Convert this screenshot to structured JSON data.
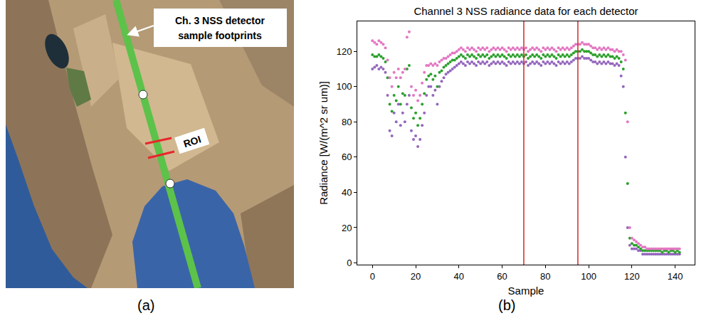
{
  "map": {
    "label": "(a)",
    "callout": "Ch. 3 NSS detector sample footprints",
    "roi": "ROI"
  },
  "chart_data": {
    "type": "scatter",
    "label": "(b)",
    "title": "Channel 3 NSS radiance data for each detector",
    "x_label": "Sample",
    "y_label": "Radiance [W/(m^2 sr um)]",
    "marker": "dot",
    "grid": false,
    "xlim": [
      -7,
      149
    ],
    "ylim": [
      -1,
      137
    ],
    "xticks": [
      0,
      20,
      40,
      60,
      80,
      100,
      120,
      140
    ],
    "yticks": [
      0,
      20,
      40,
      60,
      80,
      100,
      120
    ],
    "vlines": [
      70,
      95
    ],
    "x": [
      0,
      1,
      2,
      3,
      4,
      5,
      6,
      7,
      8,
      9,
      10,
      11,
      12,
      13,
      14,
      15,
      16,
      17,
      18,
      19,
      20,
      21,
      22,
      23,
      24,
      25,
      26,
      27,
      28,
      29,
      30,
      31,
      32,
      33,
      34,
      35,
      36,
      37,
      38,
      39,
      40,
      41,
      42,
      43,
      44,
      45,
      46,
      47,
      48,
      49,
      50,
      51,
      52,
      53,
      54,
      55,
      56,
      57,
      58,
      59,
      60,
      61,
      62,
      63,
      64,
      65,
      66,
      67,
      68,
      69,
      70,
      71,
      72,
      73,
      74,
      75,
      76,
      77,
      78,
      79,
      80,
      81,
      82,
      83,
      84,
      85,
      86,
      87,
      88,
      89,
      90,
      91,
      92,
      93,
      94,
      95,
      96,
      97,
      98,
      99,
      100,
      101,
      102,
      103,
      104,
      105,
      106,
      107,
      108,
      109,
      110,
      111,
      112,
      113,
      114,
      115,
      116,
      117,
      118,
      119,
      120,
      121,
      122,
      123,
      124,
      125,
      126,
      127,
      128,
      129,
      130,
      131,
      132,
      133,
      134,
      135,
      136,
      137,
      138,
      139,
      140,
      141,
      142
    ],
    "series": [
      {
        "color": "#9467bd",
        "values": [
          110,
          111,
          112,
          110,
          111,
          110,
          108,
          95,
          75,
          72,
          85,
          80,
          90,
          78,
          85,
          80,
          90,
          95,
          75,
          70,
          72,
          66,
          70,
          78,
          85,
          95,
          100,
          100,
          95,
          98,
          90,
          100,
          103,
          105,
          107,
          108,
          109,
          110,
          111,
          112,
          113,
          114,
          113,
          112,
          114,
          113,
          114,
          113,
          112,
          114,
          113,
          114,
          113,
          114,
          112,
          113,
          114,
          113,
          114,
          113,
          114,
          113,
          112,
          114,
          113,
          114,
          113,
          114,
          113,
          114,
          113,
          114,
          112,
          113,
          114,
          113,
          114,
          113,
          112,
          114,
          113,
          114,
          113,
          114,
          113,
          112,
          114,
          113,
          114,
          113,
          114,
          113,
          114,
          115,
          116,
          116,
          116,
          117,
          116,
          116,
          116,
          115,
          114,
          114,
          113,
          114,
          113,
          114,
          113,
          114,
          113,
          113,
          112,
          113,
          112,
          106,
          100,
          60,
          20,
          10,
          8,
          8,
          8,
          7,
          7,
          5,
          5,
          5,
          5,
          5,
          5,
          5,
          5,
          5,
          5,
          5,
          5,
          5,
          5,
          5,
          5,
          5,
          5
        ]
      },
      {
        "color": "#2ca02c",
        "values": [
          118,
          117,
          117,
          118,
          117,
          116,
          114,
          105,
          90,
          86,
          95,
          92,
          100,
          90,
          96,
          95,
          110,
          112,
          88,
          82,
          85,
          78,
          82,
          90,
          96,
          104,
          106,
          107,
          104,
          106,
          100,
          108,
          109,
          111,
          112,
          113,
          114,
          115,
          115,
          116,
          117,
          118,
          117,
          116,
          118,
          117,
          118,
          117,
          116,
          118,
          117,
          118,
          117,
          118,
          116,
          117,
          118,
          117,
          118,
          117,
          118,
          117,
          116,
          118,
          117,
          118,
          117,
          118,
          117,
          118,
          117,
          118,
          116,
          117,
          118,
          117,
          118,
          117,
          116,
          118,
          117,
          118,
          117,
          118,
          117,
          116,
          118,
          117,
          118,
          117,
          118,
          117,
          118,
          119,
          120,
          120,
          120,
          121,
          120,
          120,
          120,
          119,
          118,
          118,
          117,
          118,
          117,
          118,
          117,
          118,
          117,
          117,
          116,
          117,
          116,
          114,
          110,
          85,
          45,
          14,
          11,
          10,
          10,
          9,
          8,
          7,
          7,
          7,
          7,
          7,
          7,
          7,
          7,
          7,
          6,
          7,
          7,
          6,
          7,
          7,
          6,
          7,
          6
        ]
      },
      {
        "color": "#e377c2",
        "values": [
          126,
          125,
          124,
          126,
          125,
          124,
          122,
          115,
          105,
          100,
          108,
          105,
          110,
          105,
          108,
          110,
          128,
          131,
          100,
          95,
          98,
          92,
          95,
          102,
          108,
          112,
          112,
          113,
          112,
          113,
          112,
          114,
          115,
          116,
          116,
          117,
          118,
          119,
          119,
          120,
          121,
          122,
          121,
          120,
          122,
          121,
          122,
          121,
          120,
          122,
          121,
          122,
          121,
          122,
          120,
          121,
          122,
          121,
          122,
          121,
          122,
          121,
          120,
          122,
          121,
          122,
          121,
          122,
          121,
          122,
          121,
          122,
          120,
          121,
          122,
          121,
          122,
          121,
          120,
          122,
          121,
          122,
          121,
          122,
          121,
          120,
          122,
          121,
          122,
          121,
          122,
          121,
          122,
          123,
          124,
          124,
          124,
          125,
          124,
          124,
          124,
          123,
          122,
          122,
          121,
          122,
          121,
          122,
          121,
          122,
          121,
          121,
          120,
          121,
          120,
          120,
          118,
          115,
          80,
          20,
          14,
          13,
          12,
          11,
          10,
          9,
          9,
          8,
          8,
          8,
          8,
          8,
          8,
          8,
          8,
          8,
          8,
          8,
          8,
          8,
          8,
          8,
          8
        ]
      }
    ]
  }
}
